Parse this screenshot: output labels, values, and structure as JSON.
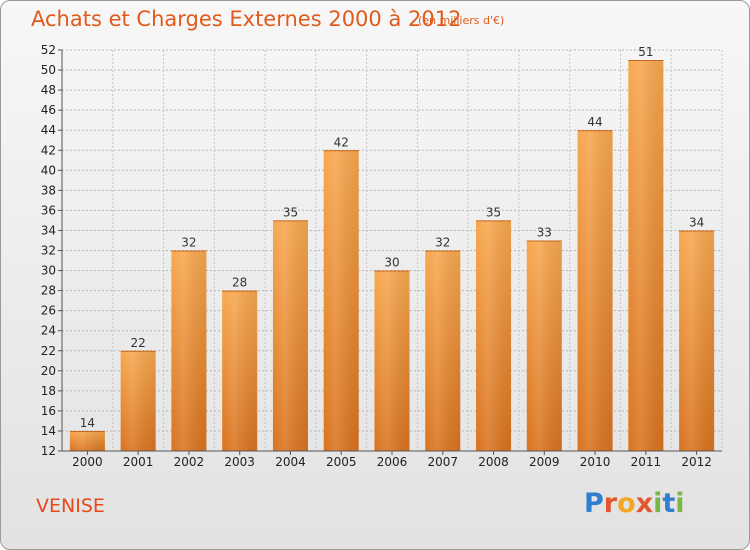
{
  "title": "Achats et Charges Externes 2000 à 2012",
  "subtitle": "(en milliers d'€)",
  "location": "VENISE",
  "logo": {
    "letters": [
      "P",
      "r",
      "o",
      "x",
      "i",
      "t",
      "i"
    ],
    "colors": [
      "#2f7fd0",
      "#e4572e",
      "#f5a623",
      "#e4572e",
      "#7ab648",
      "#2f7fd0",
      "#7ab648"
    ]
  },
  "colors": {
    "bar": "#f5a04a",
    "bar_dark": "#d9731f",
    "title": "#e05a1a"
  },
  "chart_data": {
    "type": "bar",
    "title": "Achats et Charges Externes 2000 à 2012",
    "subtitle": "(en milliers d'€)",
    "categories": [
      "2000",
      "2001",
      "2002",
      "2003",
      "2004",
      "2005",
      "2006",
      "2007",
      "2008",
      "2009",
      "2010",
      "2011",
      "2012"
    ],
    "values": [
      14,
      22,
      32,
      28,
      35,
      42,
      30,
      32,
      35,
      33,
      44,
      51,
      34
    ],
    "ylim": [
      12,
      52
    ],
    "yticks": [
      12,
      14,
      16,
      18,
      20,
      22,
      24,
      26,
      28,
      30,
      32,
      34,
      36,
      38,
      40,
      42,
      44,
      46,
      48,
      50,
      52
    ],
    "grid": true,
    "legend": "none"
  }
}
